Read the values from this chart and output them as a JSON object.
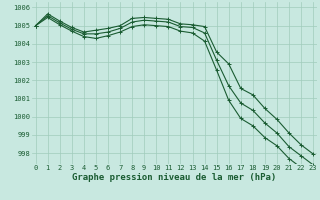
{
  "bg_color": "#c8e8e0",
  "grid_color": "#a0ccbc",
  "line_color": "#1a5c32",
  "x": [
    0,
    1,
    2,
    3,
    4,
    5,
    6,
    7,
    8,
    9,
    10,
    11,
    12,
    13,
    14,
    15,
    16,
    17,
    18,
    19,
    20,
    21,
    22,
    23
  ],
  "series1": [
    1005.0,
    1005.65,
    1005.25,
    1004.9,
    1004.65,
    1004.75,
    1004.85,
    1005.0,
    1005.4,
    1005.45,
    1005.4,
    1005.35,
    1005.1,
    1005.05,
    1004.95,
    1003.55,
    1002.9,
    1001.55,
    1001.2,
    1000.45,
    999.85,
    999.1,
    998.45,
    997.95
  ],
  "series2": [
    1005.0,
    1005.55,
    1005.15,
    1004.8,
    1004.55,
    1004.55,
    1004.65,
    1004.85,
    1005.2,
    1005.3,
    1005.25,
    1005.2,
    1004.95,
    1004.9,
    1004.6,
    1003.1,
    1001.7,
    1000.75,
    1000.35,
    999.65,
    999.1,
    998.35,
    997.85,
    997.35
  ],
  "series3": [
    1005.0,
    1005.45,
    1005.05,
    1004.7,
    1004.4,
    1004.3,
    1004.45,
    1004.65,
    1004.95,
    1005.05,
    1005.0,
    1004.95,
    1004.7,
    1004.6,
    1004.15,
    1002.55,
    1000.9,
    999.9,
    999.5,
    998.85,
    998.4,
    997.7,
    997.2,
    996.8
  ],
  "ylim": [
    997.4,
    1006.3
  ],
  "yticks": [
    998,
    999,
    1000,
    1001,
    1002,
    1003,
    1004,
    1005,
    1006
  ],
  "xticks": [
    0,
    1,
    2,
    3,
    4,
    5,
    6,
    7,
    8,
    9,
    10,
    11,
    12,
    13,
    14,
    15,
    16,
    17,
    18,
    19,
    20,
    21,
    22,
    23
  ],
  "xlabel": "Graphe pression niveau de la mer (hPa)",
  "tick_fontsize": 5.0,
  "label_fontsize": 6.5,
  "markersize": 3.0,
  "linewidth": 0.8
}
